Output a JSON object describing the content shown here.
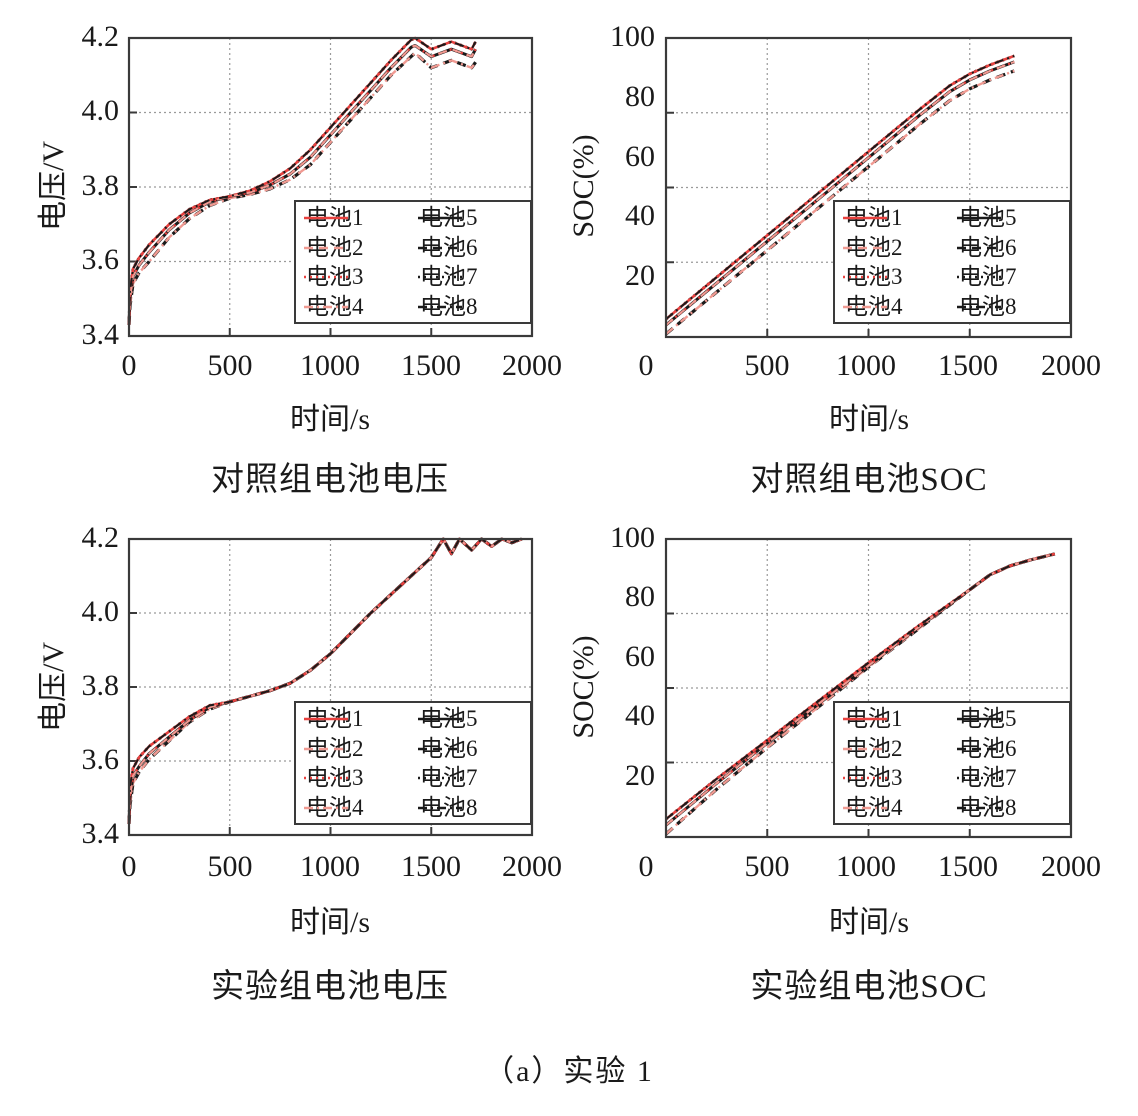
{
  "figure": {
    "caption": "（a）实验 1",
    "colors": {
      "red": "#e8413f",
      "light_red": "#f09a92",
      "black": "#1a1a1a",
      "grid": "#9a9a9a",
      "frame": "#3a3a3a"
    }
  },
  "legend": {
    "items": [
      {
        "label": "电池1",
        "color": "#e8413f",
        "dash": "solid"
      },
      {
        "label": "电池2",
        "color": "#f09a92",
        "dash": "dashed"
      },
      {
        "label": "电池3",
        "color": "#e8413f",
        "dash": "dotted"
      },
      {
        "label": "电池4",
        "color": "#f09a92",
        "dash": "dashdot"
      },
      {
        "label": "电池5",
        "color": "#1a1a1a",
        "dash": "solid"
      },
      {
        "label": "电池6",
        "color": "#1a1a1a",
        "dash": "dashed"
      },
      {
        "label": "电池7",
        "color": "#1a1a1a",
        "dash": "dotted"
      },
      {
        "label": "电池8",
        "color": "#1a1a1a",
        "dash": "dashdot"
      }
    ]
  },
  "panels": [
    {
      "subtitle": "对照组电池电压",
      "ylabel": "电压/V",
      "xlabel": "时间/s"
    },
    {
      "subtitle": "对照组电池SOC",
      "ylabel": "SOC(%)",
      "xlabel": "时间/s"
    },
    {
      "subtitle": "实验组电池电压",
      "ylabel": "电压/V",
      "xlabel": "时间/s"
    },
    {
      "subtitle": "实验组电池SOC",
      "ylabel": "SOC(%)",
      "xlabel": "时间/s"
    }
  ],
  "chart_data": [
    {
      "type": "line",
      "title": "对照组电池电压",
      "xlabel": "时间/s",
      "ylabel": "电压/V",
      "xlim": [
        0,
        2000
      ],
      "ylim": [
        3.4,
        4.2
      ],
      "xticks": [
        "0",
        "500",
        "1000",
        "1500",
        "2000"
      ],
      "yticks": [
        "3.4",
        "3.6",
        "3.8",
        "4.0",
        "4.2"
      ],
      "grid": true,
      "legend_position": "lower right",
      "spread": 0.025,
      "x": [
        0,
        5,
        20,
        50,
        100,
        200,
        300,
        400,
        500,
        600,
        700,
        800,
        900,
        1000,
        1100,
        1200,
        1300,
        1400,
        1420,
        1500,
        1600,
        1700,
        1720
      ],
      "series": [
        {
          "name": "电池1",
          "values": [
            3.43,
            3.52,
            3.58,
            3.61,
            3.645,
            3.7,
            3.74,
            3.765,
            3.775,
            3.79,
            3.815,
            3.85,
            3.9,
            3.96,
            4.02,
            4.08,
            4.14,
            4.195,
            4.2,
            4.17,
            4.19,
            4.17,
            4.19
          ]
        },
        {
          "name": "电池5",
          "values": [
            3.43,
            3.5,
            3.56,
            3.59,
            3.625,
            3.685,
            3.73,
            3.76,
            3.775,
            3.785,
            3.805,
            3.835,
            3.88,
            3.94,
            4.0,
            4.06,
            4.12,
            4.175,
            4.18,
            4.15,
            4.17,
            4.15,
            4.17
          ]
        },
        {
          "name": "电池8",
          "values": [
            3.43,
            3.48,
            3.54,
            3.57,
            3.6,
            3.665,
            3.715,
            3.75,
            3.77,
            3.78,
            3.795,
            3.82,
            3.86,
            3.92,
            3.98,
            4.04,
            4.1,
            4.15,
            4.16,
            4.12,
            4.14,
            4.12,
            4.135
          ]
        }
      ]
    },
    {
      "type": "line",
      "title": "对照组电池SOC",
      "xlabel": "时间/s",
      "ylabel": "SOC(%)",
      "xlim": [
        0,
        2000
      ],
      "ylim": [
        0,
        100
      ],
      "xticks": [
        "0",
        "500",
        "1000",
        "1500",
        "2000"
      ],
      "yticks": [
        "20",
        "40",
        "60",
        "80",
        "100"
      ],
      "grid": true,
      "legend_position": "lower right",
      "x": [
        0,
        250,
        500,
        750,
        1000,
        1250,
        1400,
        1500,
        1600,
        1720
      ],
      "series": [
        {
          "name": "电池1",
          "values": [
            6,
            20,
            34,
            48,
            62,
            76,
            84,
            88,
            91,
            94
          ]
        },
        {
          "name": "电池5",
          "values": [
            4,
            18,
            32,
            46,
            60,
            74,
            82,
            86,
            89,
            92
          ]
        },
        {
          "name": "电池8",
          "values": [
            1,
            15,
            29,
            43,
            57,
            71,
            79,
            83,
            86,
            89
          ]
        }
      ]
    },
    {
      "type": "line",
      "title": "实验组电池电压",
      "xlabel": "时间/s",
      "ylabel": "电压/V",
      "xlim": [
        0,
        2000
      ],
      "ylim": [
        3.4,
        4.2
      ],
      "xticks": [
        "0",
        "500",
        "1000",
        "1500",
        "2000"
      ],
      "yticks": [
        "3.4",
        "3.6",
        "3.8",
        "4.0",
        "4.2"
      ],
      "grid": true,
      "legend_position": "lower right",
      "x": [
        0,
        5,
        20,
        50,
        100,
        200,
        300,
        400,
        500,
        600,
        700,
        800,
        900,
        1000,
        1100,
        1200,
        1300,
        1400,
        1500,
        1560,
        1600,
        1640,
        1700,
        1750,
        1800,
        1850,
        1900,
        1950
      ],
      "series": [
        {
          "name": "电池1",
          "values": [
            3.43,
            3.53,
            3.58,
            3.61,
            3.64,
            3.68,
            3.72,
            3.75,
            3.76,
            3.775,
            3.79,
            3.81,
            3.845,
            3.89,
            3.945,
            4.0,
            4.05,
            4.1,
            4.15,
            4.2,
            4.16,
            4.2,
            4.17,
            4.2,
            4.18,
            4.2,
            4.19,
            4.2
          ]
        },
        {
          "name": "电池5",
          "values": [
            3.43,
            3.5,
            3.56,
            3.585,
            3.62,
            3.665,
            3.71,
            3.745,
            3.76,
            3.775,
            3.79,
            3.81,
            3.845,
            3.89,
            3.945,
            4.0,
            4.05,
            4.1,
            4.15,
            4.2,
            4.16,
            4.2,
            4.17,
            4.2,
            4.18,
            4.2,
            4.19,
            4.2
          ]
        },
        {
          "name": "电池8",
          "values": [
            3.43,
            3.48,
            3.54,
            3.57,
            3.605,
            3.655,
            3.705,
            3.74,
            3.76,
            3.775,
            3.79,
            3.81,
            3.845,
            3.89,
            3.945,
            4.0,
            4.05,
            4.1,
            4.15,
            4.2,
            4.16,
            4.2,
            4.17,
            4.2,
            4.18,
            4.2,
            4.19,
            4.2
          ]
        }
      ]
    },
    {
      "type": "line",
      "title": "实验组电池SOC",
      "xlabel": "时间/s",
      "ylabel": "SOC(%)",
      "xlim": [
        0,
        2000
      ],
      "ylim": [
        0,
        100
      ],
      "xticks": [
        "0",
        "500",
        "1000",
        "1500",
        "2000"
      ],
      "yticks": [
        "20",
        "40",
        "60",
        "80",
        "100"
      ],
      "grid": true,
      "legend_position": "lower right",
      "x": [
        0,
        250,
        500,
        750,
        1000,
        1250,
        1500,
        1600,
        1700,
        1800,
        1920
      ],
      "series": [
        {
          "name": "电池1",
          "values": [
            6,
            19.5,
            32.5,
            45.5,
            58.5,
            71,
            83,
            88,
            91,
            93,
            95
          ]
        },
        {
          "name": "电池5",
          "values": [
            4,
            18,
            31.5,
            44.5,
            57.5,
            70.5,
            83,
            88,
            91,
            93,
            95
          ]
        },
        {
          "name": "电池8",
          "values": [
            1,
            16,
            30,
            43.5,
            57,
            70,
            83,
            88,
            91,
            93,
            95
          ]
        }
      ]
    }
  ]
}
